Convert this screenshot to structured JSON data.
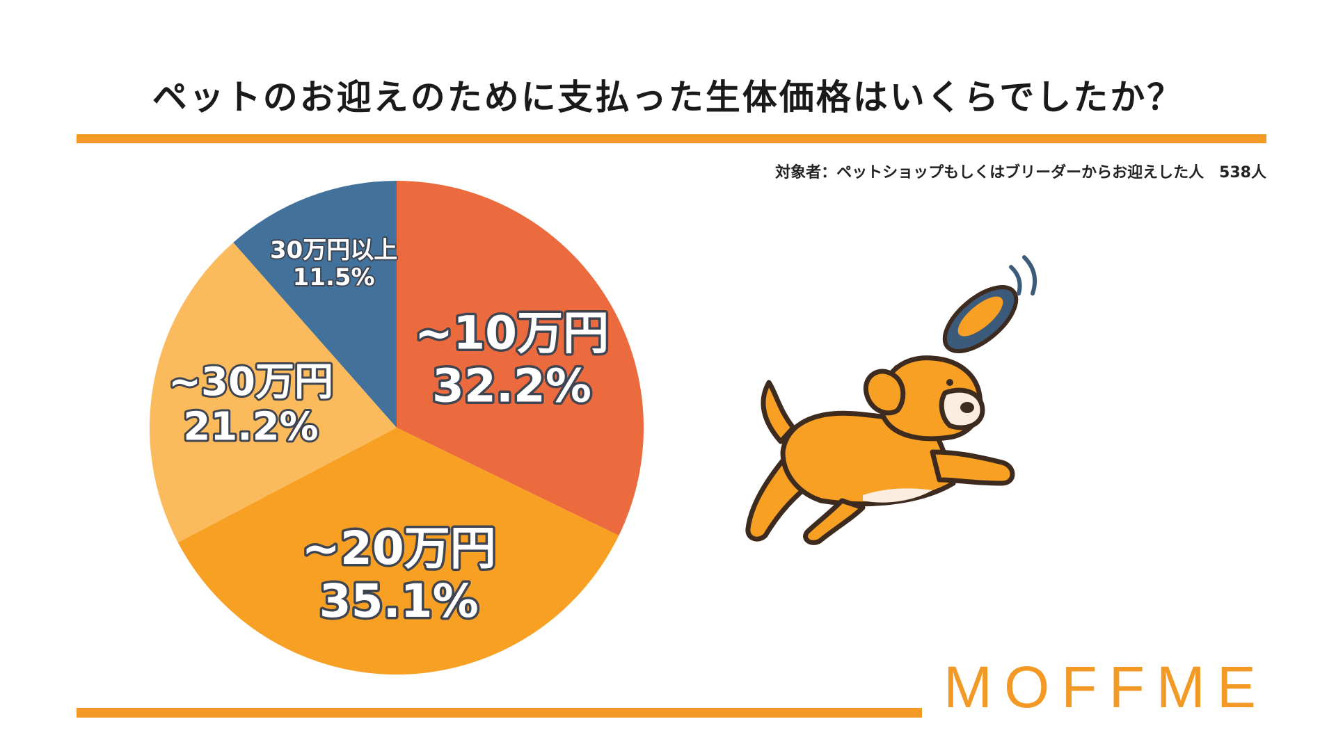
{
  "header": {
    "title": "ペットのお迎えのために支払った生体価格はいくらでしたか？",
    "subtitle": "対象者：ペットショップもしくはブリーダーからお迎えした人　538人"
  },
  "brand": {
    "logo_text": "MOFFME"
  },
  "colors": {
    "accent": "#f29a25",
    "label_outline": "#3e4450"
  },
  "chart_data": {
    "type": "pie",
    "title": "ペットのお迎えのために支払った生体価格はいくらでしたか？",
    "slices": [
      {
        "label": "~10万円",
        "value": 32.2,
        "value_label": "32.2%",
        "color": "#eb6a3e"
      },
      {
        "label": "~20万円",
        "value": 35.1,
        "value_label": "35.1%",
        "color": "#f7a024"
      },
      {
        "label": "~30万円",
        "value": 21.2,
        "value_label": "21.2%",
        "color": "#fbbb5c"
      },
      {
        "label": "30万円以上",
        "value": 11.5,
        "value_label": "11.5%",
        "color": "#42729c"
      }
    ],
    "start_angle": "12 o'clock",
    "direction": "clockwise",
    "legend": "none (labels inside slices)"
  },
  "illustration": {
    "subject": "dog-chasing-frisbee",
    "icons": [
      "dog-icon",
      "frisbee-icon"
    ]
  }
}
